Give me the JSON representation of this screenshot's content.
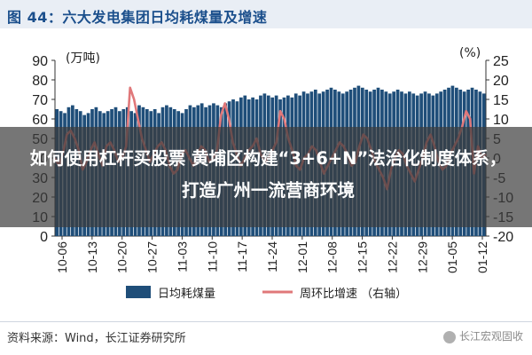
{
  "title": "图 44：六大发电集团日均耗煤量及增速",
  "overlay_text": "如何使用杠杆买股票 黄埔区构建“3+6+N”法治化制度体系，打造广州一流营商环境",
  "source": "资料来源：Wind，长江证券研究所",
  "watermark": "长江宏观固收",
  "colors": {
    "bar": "#1f4e79",
    "line": "#e0787a",
    "title": "#1b4f8c"
  },
  "chart_data": {
    "type": "bar",
    "title": "图 44：六大发电集团日均耗煤量及增速",
    "left_unit": "(万吨)",
    "right_unit": "(%)",
    "ylim_left": [
      0,
      90
    ],
    "ylim_right": [
      -20,
      25
    ],
    "yticks_left": [
      "90",
      "80",
      "70",
      "60",
      "50",
      "40",
      "30",
      "20",
      "10",
      "0"
    ],
    "yticks_right": [
      "25",
      "20",
      "15",
      "10",
      "5",
      "0",
      "-5",
      "-10",
      "-15",
      "-20"
    ],
    "xticks": [
      "10-06",
      "10-13",
      "10-20",
      "10-27",
      "11-03",
      "11-10",
      "11-17",
      "11-24",
      "12-01",
      "12-08",
      "12-15",
      "12-22",
      "12-29",
      "01-05",
      "01-12"
    ],
    "legend": [
      "日均耗煤量",
      "周环比增速 （右轴）"
    ],
    "series": [
      {
        "name": "日均耗煤量",
        "axis": "left",
        "values": [
          65,
          64,
          63,
          66,
          67,
          65,
          64,
          62,
          63,
          65,
          66,
          64,
          63,
          64,
          65,
          66,
          64,
          65,
          66,
          64,
          63,
          67,
          66,
          65,
          64,
          65,
          63,
          66,
          67,
          66,
          65,
          64,
          63,
          65,
          67,
          66,
          67,
          68,
          66,
          67,
          68,
          67,
          66,
          68,
          69,
          70,
          69,
          71,
          72,
          70,
          71,
          70,
          72,
          73,
          72,
          71,
          72,
          70,
          71,
          72,
          71,
          73,
          72,
          74,
          73,
          74,
          75,
          73,
          74,
          75,
          76,
          75,
          74,
          73,
          74,
          75,
          76,
          77,
          76,
          75,
          74,
          75,
          76,
          75,
          74,
          73,
          74,
          75,
          74,
          73,
          74,
          73,
          72,
          73,
          74,
          73,
          72,
          73,
          74,
          75,
          76,
          77,
          76,
          75,
          74,
          75,
          76,
          75,
          74,
          73
        ]
      },
      {
        "name": "周环比增速 （右轴）",
        "axis": "right",
        "values": [
          0,
          -2,
          1,
          6,
          7,
          5,
          2,
          -3,
          -1,
          2,
          4,
          1,
          -2,
          3,
          4,
          2,
          -1,
          0,
          3,
          18,
          15,
          10,
          5,
          2,
          -1,
          1,
          3,
          4,
          2,
          -2,
          -4,
          -3,
          1,
          2,
          0,
          -2,
          1,
          3,
          2,
          -1,
          0,
          2,
          11,
          14,
          10,
          4,
          1,
          -2,
          0,
          2,
          3,
          5,
          1,
          -1,
          0,
          2,
          4,
          12,
          10,
          5,
          2,
          -2,
          -3,
          0,
          1,
          3,
          2,
          -1,
          -4,
          -2,
          0,
          2,
          4,
          3,
          1,
          -2,
          -1,
          3,
          6,
          5,
          2,
          -1,
          -3,
          -5,
          -8,
          -3,
          0,
          2,
          1,
          -2,
          -4,
          -6,
          -3,
          0,
          4,
          6,
          3,
          -1,
          -3,
          -2,
          1,
          3,
          5,
          8,
          12,
          10,
          -4,
          3,
          0,
          1
        ]
      }
    ]
  }
}
